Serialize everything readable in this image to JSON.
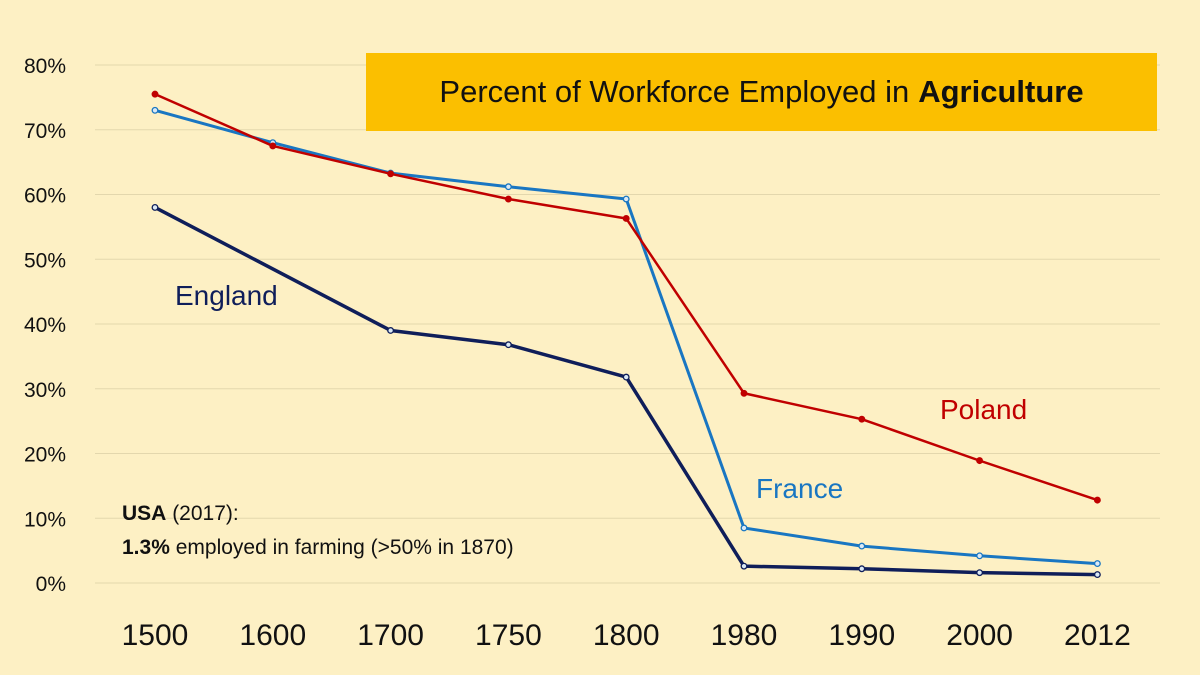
{
  "chart_data": {
    "type": "line",
    "title": "Percent of Workforce Employed in",
    "title_bold": "Agriculture",
    "categories": [
      "1500",
      "1600",
      "1700",
      "1750",
      "1800",
      "1980",
      "1990",
      "2000",
      "2012"
    ],
    "y_tick_labels": [
      "0%",
      "10%",
      "20%",
      "30%",
      "40%",
      "50%",
      "60%",
      "70%",
      "80%"
    ],
    "ylim": [
      0,
      80
    ],
    "grid": true,
    "series": [
      {
        "name": "England",
        "color": "#0f1e5a",
        "values": [
          58.0,
          null,
          39.0,
          36.8,
          31.8,
          2.6,
          2.2,
          1.6,
          1.3
        ]
      },
      {
        "name": "France",
        "color": "#1976c2",
        "values": [
          73.0,
          68.0,
          63.3,
          61.2,
          59.3,
          8.5,
          5.7,
          4.2,
          3.0
        ]
      },
      {
        "name": "Poland",
        "color": "#c00000",
        "values": [
          75.5,
          67.5,
          63.2,
          59.3,
          56.3,
          29.3,
          25.3,
          18.9,
          12.8
        ]
      }
    ],
    "annotation": {
      "line1_bold": "USA",
      "line1_rest": "(2017):",
      "line2_bold": "1.3%",
      "line2_rest": "employed in farming (>50% in 1870)"
    }
  }
}
